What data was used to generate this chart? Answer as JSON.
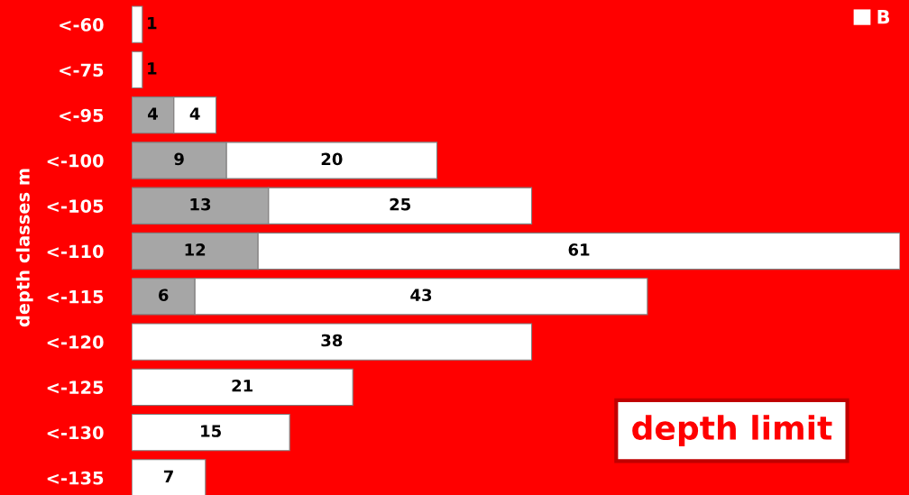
{
  "chart_data": {
    "type": "bar",
    "orientation": "horizontal",
    "stacked": true,
    "ylabel": "depth classes m",
    "categories": [
      "<-60",
      "<-75",
      "<-95",
      "<-100",
      "<-105",
      "<-110",
      "<-115",
      "<-120",
      "<-125",
      "<-130",
      "<-135"
    ],
    "series": [
      {
        "color": "#a6a6a6",
        "values": [
          null,
          null,
          4,
          9,
          13,
          12,
          6,
          null,
          null,
          null,
          null
        ]
      },
      {
        "name": "B",
        "color": "#ffffff",
        "values": [
          1,
          1,
          4,
          20,
          25,
          61,
          43,
          38,
          21,
          15,
          7
        ]
      }
    ],
    "data_labels": true,
    "legend": "top right",
    "grid": false,
    "tick_labels": "y",
    "annotations": [
      "depth limit"
    ]
  }
}
